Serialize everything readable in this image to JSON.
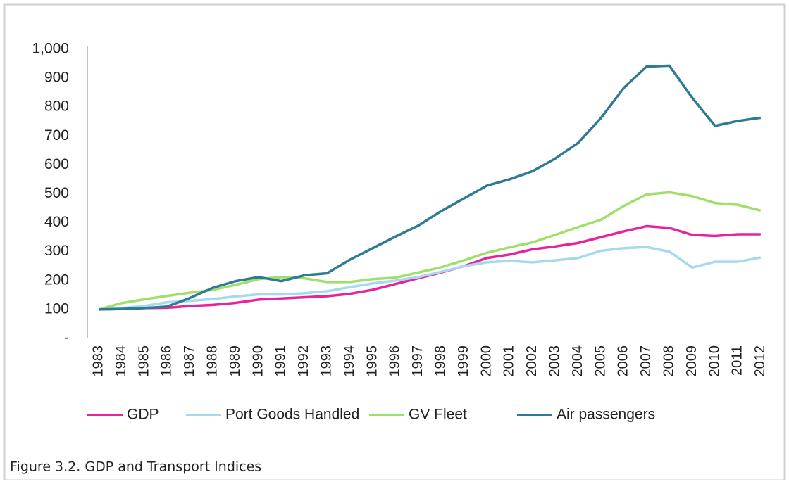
{
  "chart_data": {
    "type": "line",
    "caption": "Figure 3.2.  GDP and Transport Indices",
    "categories": [
      "1983",
      "1984",
      "1985",
      "1986",
      "1987",
      "1988",
      "1989",
      "1990",
      "1991",
      "1992",
      "1993",
      "1994",
      "1995",
      "1996",
      "1997",
      "1998",
      "1999",
      "2000",
      "2001",
      "2002",
      "2003",
      "2004",
      "2005",
      "2006",
      "2007",
      "2008",
      "2009",
      "2010",
      "2011",
      "2012"
    ],
    "series": [
      {
        "name": "GDP",
        "color": "#e8229a",
        "values": [
          100,
          102,
          105,
          106,
          112,
          116,
          123,
          134,
          138,
          142,
          146,
          154,
          168,
          188,
          208,
          228,
          250,
          278,
          290,
          308,
          318,
          330,
          350,
          370,
          388,
          382,
          358,
          354,
          360,
          360
        ]
      },
      {
        "name": "Port Goods Handled",
        "color": "#a6d9ec",
        "values": [
          100,
          105,
          112,
          125,
          130,
          136,
          145,
          152,
          152,
          156,
          163,
          177,
          190,
          200,
          212,
          230,
          250,
          263,
          268,
          263,
          270,
          278,
          303,
          312,
          316,
          300,
          245,
          265,
          265,
          280
        ]
      },
      {
        "name": "GV Fleet",
        "color": "#9fe06a",
        "values": [
          100,
          122,
          135,
          147,
          158,
          168,
          185,
          205,
          212,
          208,
          195,
          195,
          205,
          210,
          228,
          246,
          270,
          296,
          315,
          332,
          358,
          385,
          410,
          458,
          498,
          505,
          492,
          468,
          462,
          442
        ]
      },
      {
        "name": "Air passengers",
        "color": "#2f7a95",
        "values": [
          100,
          102,
          105,
          110,
          140,
          175,
          198,
          212,
          198,
          218,
          225,
          272,
          312,
          352,
          390,
          440,
          484,
          528,
          550,
          578,
          622,
          676,
          762,
          866,
          940,
          943,
          832,
          735,
          752,
          763
        ]
      }
    ],
    "ylim": [
      0,
      1000
    ],
    "yticks": [
      {
        "value": 0,
        "label": "-"
      },
      100,
      200,
      300,
      400,
      500,
      600,
      700,
      800,
      900,
      {
        "value": 1000,
        "label": "1,000"
      }
    ],
    "legend": "bottom"
  }
}
